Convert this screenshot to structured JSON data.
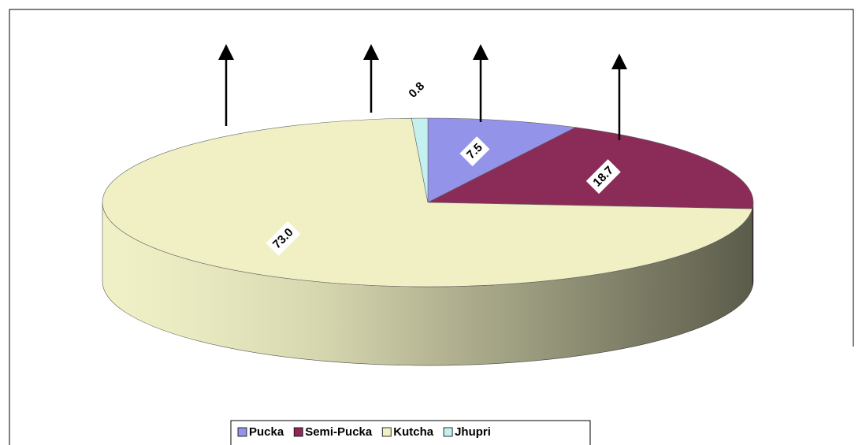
{
  "chart_data": {
    "type": "pie",
    "categories": [
      "Pucka",
      "Semi-Pucka",
      "Kutcha",
      "Jhupri"
    ],
    "values": [
      7.5,
      18.7,
      73,
      0.8
    ],
    "value_labels": [
      "7.5",
      "18.7",
      "73.0",
      "0.8"
    ],
    "colors": [
      "#9393ea",
      "#8b2b58",
      "#f0f0c4",
      "#c4f0f0"
    ],
    "legend": "bottom"
  }
}
